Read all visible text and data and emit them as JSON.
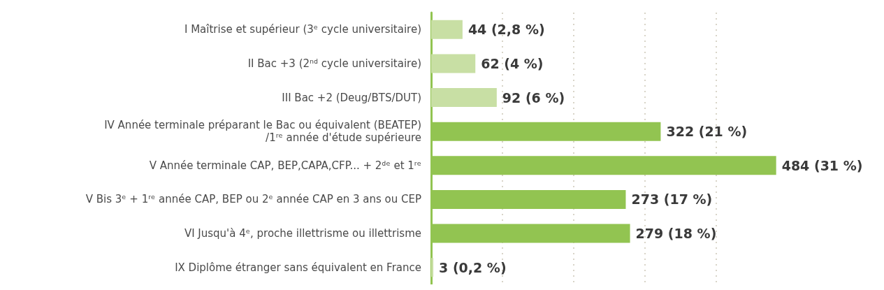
{
  "chart_data": {
    "type": "bar",
    "orientation": "horizontal",
    "categories": [
      "I Maîtrise et supérieur (3ᵉ cycle universitaire)",
      "II Bac +3 (2ⁿᵈ cycle universitaire)",
      "III Bac +2 (Deug/BTS/DUT)",
      "IV Année terminale préparant le Bac ou équivalent (BEATEP)\n/1ʳᵉ année d'étude supérieure",
      "V Année terminale CAP, BEP,CAPA,CFP... + 2ᵈᵉ et 1ʳᵉ",
      "V Bis 3ᵉ + 1ʳᵉ année CAP, BEP ou 2ᵉ année CAP en 3 ans ou CEP",
      "VI Jusqu'à 4ᵉ, proche illettrisme ou illettrisme",
      "IX Diplôme étranger sans équivalent en France"
    ],
    "values": [
      44,
      62,
      92,
      322,
      484,
      273,
      279,
      3
    ],
    "colors": [
      "#c8dfa4",
      "#c8dfa4",
      "#c8dfa4",
      "#92c451",
      "#92c451",
      "#92c451",
      "#92c451",
      "#c8dfa4"
    ],
    "value_labels": [
      "44 (2,8 %)",
      "62 (4 %)",
      "92 (6 %)",
      "322 (21 %)",
      "484 (31 %)",
      "273 (17 %)",
      "279 (18 %)",
      "3 (0,2 %)"
    ],
    "grid": "x",
    "tick_labels": "y"
  }
}
